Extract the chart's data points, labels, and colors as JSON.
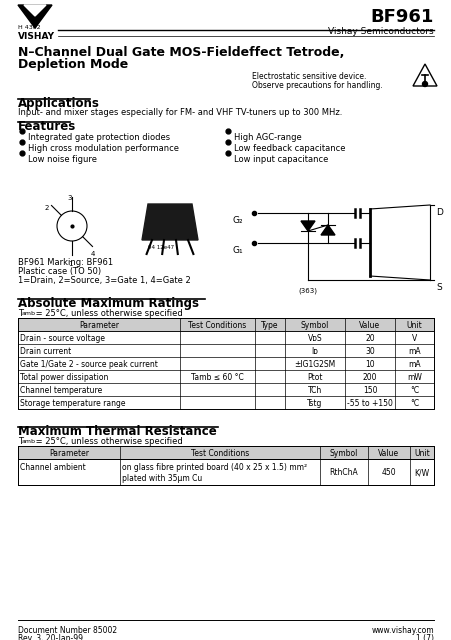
{
  "title_part": "BF961",
  "subtitle": "Vishay Semiconductors",
  "part_title_line1": "N–Channel Dual Gate MOS-Fieldeffect Tetrode,",
  "part_title_line2": "Depletion Mode",
  "esdtext_line1": "Electrostatic sensitive device.",
  "esdtext_line2": "Observe precautions for handling.",
  "app_title": "Applications",
  "app_text": "Input- and mixer stages especially for FM- and VHF TV-tuners up to 300 MHz.",
  "feat_title": "Features",
  "features_left": [
    "Integrated gate protection diodes",
    "High cross modulation performance",
    "Low noise figure"
  ],
  "features_right": [
    "High AGC-range",
    "Low feedback capacitance",
    "Low input capacitance"
  ],
  "marking_text_line1": "BF961 Marking: BF961",
  "marking_text_line2": "Plastic case (TO 50)",
  "marking_text_line3": "1=Drain, 2=Source, 3=Gate 1, 4=Gate 2",
  "abs_title": "Absolute Maximum Ratings",
  "abs_sub": "T",
  "abs_sub2": "amb",
  "abs_sub3": " = 25°C, unless otherwise specified",
  "abs_headers": [
    "Parameter",
    "Test Conditions",
    "Type",
    "Symbol",
    "Value",
    "Unit"
  ],
  "abs_rows": [
    [
      "Drain - source voltage",
      "",
      "",
      "VᴅS",
      "20",
      "V"
    ],
    [
      "Drain current",
      "",
      "",
      "Iᴅ",
      "30",
      "mA"
    ],
    [
      "Gate 1/Gate 2 - source peak current",
      "",
      "",
      "±IG1G2SM",
      "10",
      "mA"
    ],
    [
      "Total power dissipation",
      "Tamb ≤ 60 °C",
      "",
      "Ptot",
      "200",
      "mW"
    ],
    [
      "Channel temperature",
      "",
      "",
      "TCh",
      "150",
      "°C"
    ],
    [
      "Storage temperature range",
      "",
      "",
      "Tstg",
      "-55 to +150",
      "°C"
    ]
  ],
  "therm_title": "Maximum Thermal Resistance",
  "therm_sub": "T",
  "therm_sub2": "amb",
  "therm_sub3": " = 25°C, unless otherwise specified",
  "therm_headers": [
    "Parameter",
    "Test Conditions",
    "Symbol",
    "Value",
    "Unit"
  ],
  "therm_rows": [
    [
      "Channel ambient",
      "on glass fibre printed board (40 x 25 x 1.5) mm²",
      "RthChA",
      "450",
      "K/W"
    ],
    [
      "",
      "plated with 35μm Cu",
      "",
      "",
      ""
    ]
  ],
  "footer_left": "Document Number 85002",
  "footer_left2": "Rev. 3, 20-Jan-99",
  "footer_right": "www.vishay.com",
  "footer_right2": "1 (7)",
  "bg_color": "#ffffff"
}
